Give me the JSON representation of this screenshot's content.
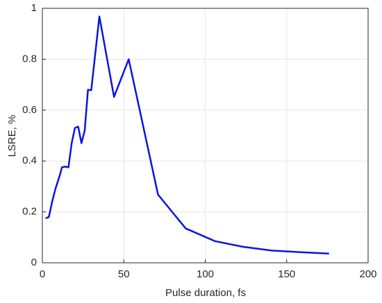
{
  "chart_data": {
    "type": "line",
    "xlabel": "Pulse duration, fs",
    "ylabel": "LSRE, %",
    "x": [
      2,
      4,
      6,
      8,
      11,
      12,
      14,
      16,
      18,
      20,
      22,
      24,
      26,
      28,
      30,
      35,
      44,
      53,
      71,
      88,
      106,
      123,
      141,
      158,
      176
    ],
    "series": [
      {
        "color": "#0a14e0",
        "values": [
          0.175,
          0.18,
          0.24,
          0.29,
          0.35,
          0.375,
          0.378,
          0.375,
          0.47,
          0.53,
          0.535,
          0.47,
          0.52,
          0.68,
          0.678,
          0.968,
          0.652,
          0.8,
          0.268,
          0.135,
          0.085,
          0.063,
          0.048,
          0.042,
          0.036
        ]
      }
    ],
    "xlim": [
      0,
      200
    ],
    "xticks": [
      0,
      50,
      100,
      150,
      200
    ],
    "ylim": [
      0,
      1
    ],
    "yticks": [
      0,
      0.2,
      0.4,
      0.6,
      0.8,
      1
    ],
    "grid": true
  }
}
